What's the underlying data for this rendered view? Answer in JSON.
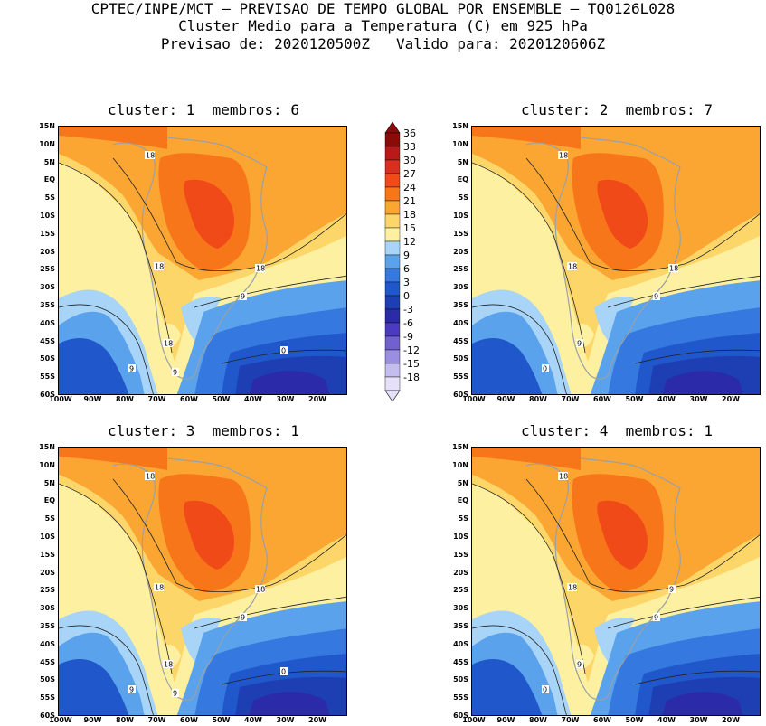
{
  "header": {
    "line1": "CPTEC/INPE/MCT – PREVISAO DE TEMPO GLOBAL POR ENSEMBLE – TQ0126L028",
    "line2": "Cluster Medio para a Temperatura (C) em 925 hPa",
    "line3": "Previsao de: 2020120500Z   Valido para: 2020120606Z"
  },
  "panels": [
    {
      "title": "cluster: 1  membros: 6",
      "contour_labels": [
        "18",
        "18",
        "18",
        "18",
        "9",
        "9",
        "9",
        "0"
      ]
    },
    {
      "title": "cluster: 2  membros: 7",
      "contour_labels": [
        "18",
        "18",
        "18",
        "9",
        "9",
        "0"
      ]
    },
    {
      "title": "cluster: 3  membros: 1",
      "contour_labels": [
        "18",
        "18",
        "18",
        "18",
        "9",
        "9",
        "9",
        "0"
      ]
    },
    {
      "title": "cluster: 4  membros: 1",
      "contour_labels": [
        "18",
        "18",
        "9",
        "9",
        "9",
        "0"
      ]
    }
  ],
  "lat_labels": [
    "15N",
    "10N",
    "5N",
    "EQ",
    "5S",
    "10S",
    "15S",
    "20S",
    "25S",
    "30S",
    "35S",
    "40S",
    "45S",
    "50S",
    "55S",
    "60S"
  ],
  "lon_labels": [
    "100W",
    "90W",
    "80W",
    "70W",
    "60W",
    "50W",
    "40W",
    "30W",
    "20W"
  ],
  "colorbar": {
    "labels": [
      "36",
      "33",
      "30",
      "27",
      "24",
      "21",
      "18",
      "15",
      "12",
      "9",
      "6",
      "3",
      "0",
      "-3",
      "-6",
      "-9",
      "-12",
      "-15",
      "-18"
    ],
    "colors": [
      "#8b0a0a",
      "#b81a1a",
      "#d83020",
      "#f04a18",
      "#f8761a",
      "#fba632",
      "#fdd66a",
      "#fdf0a0",
      "#a8d4f8",
      "#5aa2ec",
      "#3478e0",
      "#2058cc",
      "#1e3fb4",
      "#2b2aa8",
      "#4a3bc0",
      "#7060d0",
      "#9a8ee0",
      "#c4bef0",
      "#e6e0fa"
    ]
  }
}
